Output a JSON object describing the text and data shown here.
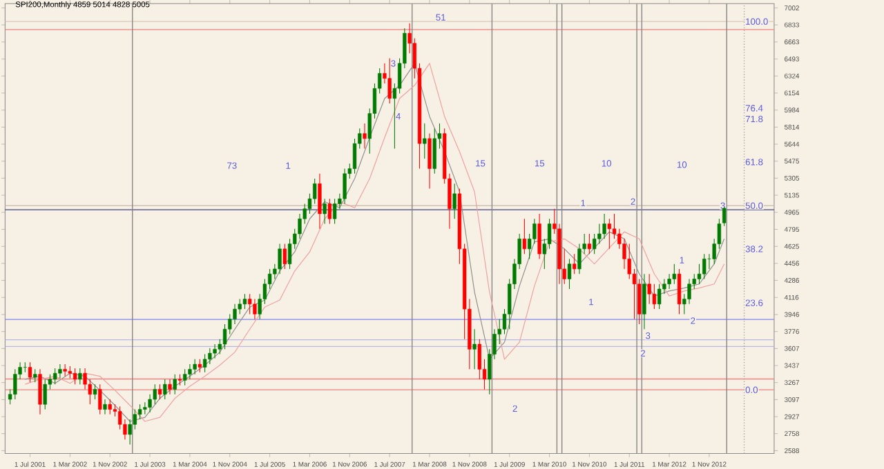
{
  "chart_data": {
    "type": "candlestick",
    "title": "SPI200,Monthly  4859 5014 4828 5005",
    "x": [
      "2001-03",
      "2001-04",
      "2001-05",
      "2001-06",
      "2001-07",
      "2001-08",
      "2001-09",
      "2001-10",
      "2001-11",
      "2001-12",
      "2002-01",
      "2002-02",
      "2002-03",
      "2002-04",
      "2002-05",
      "2002-06",
      "2002-07",
      "2002-08",
      "2002-09",
      "2002-10",
      "2002-11",
      "2002-12",
      "2003-01",
      "2003-02",
      "2003-03",
      "2003-04",
      "2003-05",
      "2003-06",
      "2003-07",
      "2003-08",
      "2003-09",
      "2003-10",
      "2003-11",
      "2003-12",
      "2004-01",
      "2004-02",
      "2004-03",
      "2004-04",
      "2004-05",
      "2004-06",
      "2004-07",
      "2004-08",
      "2004-09",
      "2004-10",
      "2004-11",
      "2004-12",
      "2005-01",
      "2005-02",
      "2005-03",
      "2005-04",
      "2005-05",
      "2005-06",
      "2005-07",
      "2005-08",
      "2005-09",
      "2005-10",
      "2005-11",
      "2005-12",
      "2006-01",
      "2006-02",
      "2006-03",
      "2006-04",
      "2006-05",
      "2006-06",
      "2006-07",
      "2006-08",
      "2006-09",
      "2006-10",
      "2006-11",
      "2006-12",
      "2007-01",
      "2007-02",
      "2007-03",
      "2007-04",
      "2007-05",
      "2007-06",
      "2007-07",
      "2007-08",
      "2007-09",
      "2007-10",
      "2007-11",
      "2007-12",
      "2008-01",
      "2008-02",
      "2008-03",
      "2008-04",
      "2008-05",
      "2008-06",
      "2008-07",
      "2008-08",
      "2008-09",
      "2008-10",
      "2008-11",
      "2008-12",
      "2009-01",
      "2009-02",
      "2009-03",
      "2009-04",
      "2009-05",
      "2009-06",
      "2009-07",
      "2009-08",
      "2009-09",
      "2009-10",
      "2009-11",
      "2009-12",
      "2010-01",
      "2010-02",
      "2010-03",
      "2010-04",
      "2010-05",
      "2010-06",
      "2010-07",
      "2010-08",
      "2010-09",
      "2010-10",
      "2010-11",
      "2010-12",
      "2011-01",
      "2011-02",
      "2011-03",
      "2011-04",
      "2011-05",
      "2011-06",
      "2011-07",
      "2011-08",
      "2011-09",
      "2011-10",
      "2011-11",
      "2011-12",
      "2012-01",
      "2012-02",
      "2012-03",
      "2012-04",
      "2012-05",
      "2012-06",
      "2012-07",
      "2012-08",
      "2012-09",
      "2012-10",
      "2012-11",
      "2012-12",
      "2013-01",
      "2013-02"
    ],
    "ohlc": [
      [
        3100,
        3200,
        3050,
        3150
      ],
      [
        3150,
        3400,
        3100,
        3350
      ],
      [
        3350,
        3470,
        3300,
        3420
      ],
      [
        3420,
        3470,
        3370,
        3420
      ],
      [
        3420,
        3470,
        3270,
        3320
      ],
      [
        3320,
        3400,
        3270,
        3350
      ],
      [
        3350,
        3400,
        2950,
        3050
      ],
      [
        3050,
        3300,
        3000,
        3250
      ],
      [
        3250,
        3350,
        3200,
        3300
      ],
      [
        3300,
        3410,
        3250,
        3360
      ],
      [
        3360,
        3450,
        3310,
        3400
      ],
      [
        3400,
        3450,
        3330,
        3380
      ],
      [
        3380,
        3430,
        3310,
        3360
      ],
      [
        3360,
        3410,
        3250,
        3300
      ],
      [
        3300,
        3410,
        3250,
        3360
      ],
      [
        3360,
        3410,
        3200,
        3250
      ],
      [
        3250,
        3300,
        3050,
        3150
      ],
      [
        3150,
        3250,
        3100,
        3200
      ],
      [
        3200,
        3250,
        2950,
        3000
      ],
      [
        3000,
        3100,
        2950,
        3050
      ],
      [
        3050,
        3100,
        2950,
        3000
      ],
      [
        3000,
        3050,
        2930,
        2980
      ],
      [
        2980,
        3030,
        2800,
        2850
      ],
      [
        2850,
        2900,
        2700,
        2750
      ],
      [
        2750,
        2900,
        2650,
        2850
      ],
      [
        2850,
        3000,
        2800,
        2950
      ],
      [
        2950,
        3050,
        2900,
        3000
      ],
      [
        3000,
        3070,
        2950,
        3020
      ],
      [
        3020,
        3150,
        2970,
        3100
      ],
      [
        3100,
        3250,
        3050,
        3200
      ],
      [
        3200,
        3250,
        3100,
        3150
      ],
      [
        3150,
        3300,
        3100,
        3250
      ],
      [
        3250,
        3300,
        3150,
        3200
      ],
      [
        3200,
        3350,
        3150,
        3300
      ],
      [
        3300,
        3350,
        3240,
        3290
      ],
      [
        3290,
        3400,
        3240,
        3350
      ],
      [
        3350,
        3450,
        3300,
        3400
      ],
      [
        3400,
        3500,
        3350,
        3450
      ],
      [
        3450,
        3500,
        3370,
        3420
      ],
      [
        3420,
        3550,
        3370,
        3500
      ],
      [
        3500,
        3610,
        3450,
        3560
      ],
      [
        3560,
        3650,
        3510,
        3600
      ],
      [
        3600,
        3700,
        3550,
        3650
      ],
      [
        3650,
        3850,
        3600,
        3800
      ],
      [
        3800,
        3950,
        3750,
        3900
      ],
      [
        3900,
        4050,
        3850,
        4000
      ],
      [
        4000,
        4100,
        3950,
        4050
      ],
      [
        4050,
        4150,
        4000,
        4100
      ],
      [
        4100,
        4150,
        3950,
        4050
      ],
      [
        4050,
        4100,
        3900,
        3950
      ],
      [
        3950,
        4150,
        3900,
        4100
      ],
      [
        4100,
        4300,
        4050,
        4250
      ],
      [
        4250,
        4400,
        4200,
        4350
      ],
      [
        4350,
        4450,
        4300,
        4400
      ],
      [
        4400,
        4650,
        4350,
        4600
      ],
      [
        4600,
        4650,
        4400,
        4450
      ],
      [
        4450,
        4700,
        4400,
        4650
      ],
      [
        4650,
        4800,
        4600,
        4750
      ],
      [
        4750,
        4950,
        4700,
        4900
      ],
      [
        4900,
        5050,
        4850,
        5000
      ],
      [
        5000,
        5150,
        4950,
        5100
      ],
      [
        5100,
        5300,
        5050,
        5250
      ],
      [
        5250,
        5350,
        4800,
        4950
      ],
      [
        4950,
        5100,
        4850,
        5050
      ],
      [
        5050,
        5100,
        4850,
        4900
      ],
      [
        4900,
        5100,
        4850,
        5050
      ],
      [
        5050,
        5150,
        5000,
        5100
      ],
      [
        5100,
        5400,
        5050,
        5350
      ],
      [
        5350,
        5450,
        5300,
        5400
      ],
      [
        5400,
        5700,
        5350,
        5650
      ],
      [
        5650,
        5800,
        5600,
        5750
      ],
      [
        5750,
        5850,
        5600,
        5700
      ],
      [
        5700,
        6000,
        5550,
        5950
      ],
      [
        5950,
        6250,
        5900,
        6200
      ],
      [
        6200,
        6400,
        6150,
        6350
      ],
      [
        6350,
        6450,
        6250,
        6300
      ],
      [
        6300,
        6500,
        6050,
        6100
      ],
      [
        6100,
        6250,
        5600,
        6200
      ],
      [
        6200,
        6500,
        6150,
        6450
      ],
      [
        6450,
        6800,
        6400,
        6750
      ],
      [
        6750,
        6850,
        6550,
        6650
      ],
      [
        6650,
        6700,
        6300,
        6400
      ],
      [
        6400,
        6450,
        5400,
        5650
      ],
      [
        5650,
        5850,
        5500,
        5700
      ],
      [
        5700,
        5750,
        5200,
        5400
      ],
      [
        5400,
        5800,
        5350,
        5700
      ],
      [
        5700,
        5850,
        5600,
        5750
      ],
      [
        5750,
        5800,
        5250,
        5300
      ],
      [
        5300,
        5350,
        4800,
        5000
      ],
      [
        5000,
        5250,
        4900,
        5150
      ],
      [
        5150,
        5200,
        4450,
        4600
      ],
      [
        4600,
        4650,
        3700,
        4000
      ],
      [
        4000,
        4100,
        3400,
        3600
      ],
      [
        3600,
        3800,
        3400,
        3650
      ],
      [
        3650,
        3700,
        3300,
        3400
      ],
      [
        3400,
        3500,
        3200,
        3300
      ],
      [
        3300,
        3600,
        3150,
        3550
      ],
      [
        3550,
        3800,
        3500,
        3750
      ],
      [
        3750,
        3900,
        3650,
        3800
      ],
      [
        3800,
        4000,
        3750,
        3950
      ],
      [
        3950,
        4300,
        3800,
        4250
      ],
      [
        4250,
        4500,
        4200,
        4450
      ],
      [
        4450,
        4750,
        4400,
        4700
      ],
      [
        4700,
        4900,
        4550,
        4600
      ],
      [
        4600,
        4750,
        4500,
        4700
      ],
      [
        4700,
        4900,
        4650,
        4850
      ],
      [
        4850,
        4950,
        4500,
        4550
      ],
      [
        4550,
        4700,
        4400,
        4650
      ],
      [
        4650,
        4900,
        4600,
        4850
      ],
      [
        4850,
        5000,
        4750,
        4800
      ],
      [
        4800,
        4850,
        4250,
        4400
      ],
      [
        4400,
        4600,
        4250,
        4300
      ],
      [
        4300,
        4500,
        4200,
        4450
      ],
      [
        4450,
        4550,
        4350,
        4400
      ],
      [
        4400,
        4650,
        4350,
        4600
      ],
      [
        4600,
        4750,
        4550,
        4650
      ],
      [
        4650,
        4750,
        4550,
        4600
      ],
      [
        4600,
        4750,
        4550,
        4700
      ],
      [
        4700,
        4850,
        4650,
        4750
      ],
      [
        4750,
        4950,
        4700,
        4850
      ],
      [
        4850,
        4900,
        4600,
        4800
      ],
      [
        4800,
        4950,
        4700,
        4750
      ],
      [
        4750,
        4800,
        4600,
        4650
      ],
      [
        4650,
        4700,
        4400,
        4500
      ],
      [
        4500,
        4650,
        4300,
        4350
      ],
      [
        4350,
        4400,
        3900,
        4250
      ],
      [
        4250,
        4300,
        3850,
        3950
      ],
      [
        3950,
        4350,
        3800,
        4250
      ],
      [
        4250,
        4350,
        4050,
        4150
      ],
      [
        4150,
        4250,
        4000,
        4050
      ],
      [
        4050,
        4250,
        4000,
        4200
      ],
      [
        4200,
        4300,
        4150,
        4250
      ],
      [
        4250,
        4350,
        4200,
        4300
      ],
      [
        4300,
        4450,
        4250,
        4350
      ],
      [
        4350,
        4400,
        3950,
        4050
      ],
      [
        4050,
        4150,
        3950,
        4100
      ],
      [
        4100,
        4300,
        4050,
        4250
      ],
      [
        4250,
        4350,
        4200,
        4300
      ],
      [
        4300,
        4450,
        4250,
        4350
      ],
      [
        4350,
        4550,
        4300,
        4500
      ],
      [
        4500,
        4550,
        4400,
        4500
      ],
      [
        4500,
        4700,
        4450,
        4650
      ],
      [
        4650,
        4900,
        4600,
        4850
      ],
      [
        4859,
        5014,
        4828,
        5005
      ]
    ],
    "series": [
      {
        "type": "line",
        "color": "#909090",
        "x": [
          "2001-06",
          "2001-09",
          "2001-12",
          "2002-03",
          "2002-06",
          "2002-09",
          "2002-12",
          "2003-03",
          "2003-06",
          "2003-09",
          "2003-12",
          "2004-03",
          "2004-06",
          "2004-09",
          "2004-12",
          "2005-03",
          "2005-06",
          "2005-09",
          "2005-12",
          "2006-03",
          "2006-06",
          "2006-09",
          "2006-12",
          "2007-03",
          "2007-06",
          "2007-09",
          "2007-12",
          "2008-03",
          "2008-06",
          "2008-09",
          "2008-12",
          "2009-03",
          "2009-06",
          "2009-09",
          "2009-12",
          "2010-03",
          "2010-06",
          "2010-09",
          "2010-12",
          "2011-03",
          "2011-06",
          "2011-09",
          "2011-12",
          "2012-03",
          "2012-06",
          "2012-09",
          "2012-12",
          "2013-02"
        ],
        "values": [
          3300,
          3330,
          3260,
          3360,
          3330,
          3190,
          3040,
          2880,
          2920,
          3110,
          3230,
          3330,
          3440,
          3570,
          3800,
          4020,
          4090,
          4380,
          4570,
          4900,
          5070,
          5010,
          5300,
          5710,
          6100,
          6230,
          6450,
          5920,
          5570,
          5170,
          4170,
          3500,
          3670,
          4230,
          4670,
          4700,
          4600,
          4450,
          4610,
          4770,
          4700,
          4350,
          4130,
          4180,
          4210,
          4250,
          4450,
          4700
        ]
      },
      {
        "type": "line",
        "color": "#f0a0a0",
        "x": [
          "2001-06",
          "2001-09",
          "2001-12",
          "2002-03",
          "2002-06",
          "2002-09",
          "2002-12",
          "2003-03",
          "2003-06",
          "2003-09",
          "2003-12",
          "2004-03",
          "2004-06",
          "2004-09",
          "2004-12",
          "2005-03",
          "2005-06",
          "2005-09",
          "2005-12",
          "2006-03",
          "2006-06",
          "2006-09",
          "2006-12",
          "2007-03",
          "2007-06",
          "2007-09",
          "2007-12",
          "2008-03",
          "2008-06",
          "2008-09",
          "2008-12",
          "2009-03",
          "2009-06",
          "2009-09",
          "2009-12",
          "2010-03",
          "2010-06",
          "2010-09",
          "2010-12",
          "2011-03",
          "2011-06",
          "2011-09",
          "2011-12",
          "2012-03",
          "2012-06",
          "2012-09",
          "2012-12",
          "2013-02"
        ],
        "values": [
          3250,
          3300,
          3330,
          3260,
          3360,
          3330,
          3190,
          3040,
          2880,
          2920,
          3110,
          3230,
          3330,
          3440,
          3570,
          3800,
          4020,
          4090,
          4380,
          4570,
          4900,
          5070,
          5010,
          5300,
          5710,
          6100,
          6230,
          6450,
          5920,
          5570,
          5170,
          4170,
          3500,
          3670,
          4230,
          4670,
          4700,
          4600,
          4450,
          4610,
          4770,
          4700,
          4350,
          4130,
          4180,
          4210,
          4250,
          4450
        ]
      }
    ],
    "xlim": [
      "2001-02",
      "2013-12"
    ],
    "xticks": [
      {
        "value": "2001-07",
        "label": "1 Jul 2001"
      },
      {
        "value": "2002-03",
        "label": "1 Mar 2002"
      },
      {
        "value": "2002-11",
        "label": "1 Nov 2002"
      },
      {
        "value": "2003-07",
        "label": "1 Jul 2003"
      },
      {
        "value": "2004-03",
        "label": "1 Mar 2004"
      },
      {
        "value": "2004-11",
        "label": "1 Nov 2004"
      },
      {
        "value": "2005-07",
        "label": "1 Jul 2005"
      },
      {
        "value": "2006-03",
        "label": "1 Mar 2006"
      },
      {
        "value": "2006-11",
        "label": "1 Nov 2006"
      },
      {
        "value": "2007-07",
        "label": "1 Jul 2007"
      },
      {
        "value": "2008-03",
        "label": "1 Mar 2008"
      },
      {
        "value": "2008-11",
        "label": "1 Nov 2008"
      },
      {
        "value": "2009-07",
        "label": "1 Jul 2009"
      },
      {
        "value": "2010-03",
        "label": "1 Mar 2010"
      },
      {
        "value": "2010-11",
        "label": "1 Nov 2010"
      },
      {
        "value": "2011-07",
        "label": "1 Jul 2011"
      },
      {
        "value": "2012-03",
        "label": "1 Mar 2012"
      },
      {
        "value": "2012-11",
        "label": "1 Nov 2012"
      }
    ],
    "ylim": [
      2560,
      7045
    ],
    "yticks": [
      2588,
      2758,
      2927,
      3097,
      3267,
      3437,
      3607,
      3776,
      3946,
      4116,
      4286,
      4456,
      4625,
      4795,
      4965,
      5135,
      5305,
      5475,
      5644,
      5814,
      5984,
      6154,
      6324,
      6493,
      6663,
      6833,
      7002
    ],
    "ref_lines": [
      {
        "axis": "y",
        "value": 6867,
        "color": "#d8c8b8"
      },
      {
        "axis": "y",
        "value": 6786,
        "color": "#f08080"
      },
      {
        "axis": "y",
        "value": 5031,
        "color": "#c8b8a8"
      },
      {
        "axis": "y",
        "value": 4990,
        "color": "#404080"
      },
      {
        "axis": "y",
        "value": 3897,
        "color": "#8080f0"
      },
      {
        "axis": "y",
        "value": 3694,
        "color": "#b8b8e8"
      },
      {
        "axis": "y",
        "value": 3627,
        "color": "#b8b8e8"
      },
      {
        "axis": "y",
        "value": 3303,
        "color": "#f08080"
      },
      {
        "axis": "y",
        "value": 3195,
        "color": "#f08080"
      },
      {
        "axis": "x",
        "value": "2003-03-16",
        "color": "#808080"
      },
      {
        "axis": "x",
        "value": "2007-11-16",
        "color": "#808080"
      },
      {
        "axis": "x",
        "value": "2009-03-16",
        "color": "#808080"
      },
      {
        "axis": "x",
        "value": "2010-04-16",
        "color": "#808080"
      },
      {
        "axis": "x",
        "value": "2010-05-16",
        "color": "#808080"
      },
      {
        "axis": "x",
        "value": "2011-08-16",
        "color": "#808080"
      },
      {
        "axis": "x",
        "value": "2011-09-16",
        "color": "#808080"
      },
      {
        "axis": "x",
        "value": "2013-02-16",
        "color": "#808080"
      },
      {
        "axis": "x",
        "value": "2013-06",
        "color": "#a0a0a0",
        "line_style": "dotted"
      }
    ],
    "annotations": [
      {
        "text": "100.0",
        "x": "2013-06",
        "y": 6867
      },
      {
        "text": "76.4",
        "x": "2013-06",
        "y": 6003
      },
      {
        "text": "71.8",
        "x": "2013-06",
        "y": 5895
      },
      {
        "text": "61.8",
        "x": "2013-06",
        "y": 5466
      },
      {
        "text": "50.0",
        "x": "2013-06",
        "y": 5031
      },
      {
        "text": "38.2",
        "x": "2013-06",
        "y": 4599
      },
      {
        "text": "23.6",
        "x": "2013-06",
        "y": 4062
      },
      {
        "text": "0.0",
        "x": "2013-06",
        "y": 3195
      },
      {
        "text": "3",
        "x": "2007-07",
        "y": 6449
      },
      {
        "text": "4",
        "x": "2007-08",
        "y": 5922
      },
      {
        "text": "51",
        "x": "2008-04",
        "y": 6908
      },
      {
        "text": "1",
        "x": "2010-09",
        "y": 5058
      },
      {
        "text": "2",
        "x": "2011-07",
        "y": 5072
      },
      {
        "text": "3",
        "x": "2011-10",
        "y": 3735
      },
      {
        "text": "2",
        "x": "2011-09",
        "y": 3560
      },
      {
        "text": "2",
        "x": "2012-07",
        "y": 3884
      },
      {
        "text": "3",
        "x": "2013-01",
        "y": 5031
      },
      "73",
      "1",
      "15",
      "15",
      "10",
      "10",
      "2",
      "1",
      "1"
    ]
  }
}
